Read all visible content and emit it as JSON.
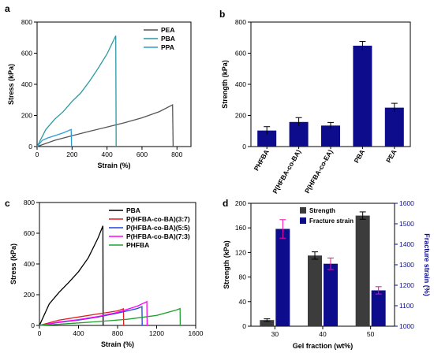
{
  "chart_data": [
    {
      "panel": "a",
      "type": "line",
      "xlabel": "Strain (%)",
      "ylabel": "Stress (kPa)",
      "xlim": [
        0,
        880
      ],
      "ylim": [
        0,
        800
      ],
      "xticks": [
        0,
        200,
        400,
        600,
        800
      ],
      "yticks": [
        0,
        200,
        400,
        600,
        800
      ],
      "legend_position": "top-right",
      "series": [
        {
          "name": "PEA",
          "color": "#555555",
          "points": [
            [
              0,
              0
            ],
            [
              100,
              40
            ],
            [
              200,
              70
            ],
            [
              300,
              98
            ],
            [
              400,
              125
            ],
            [
              500,
              153
            ],
            [
              600,
              185
            ],
            [
              700,
              225
            ],
            [
              775,
              268
            ],
            [
              778,
              0
            ]
          ]
        },
        {
          "name": "PBA",
          "color": "#2a9aa0",
          "points": [
            [
              0,
              0
            ],
            [
              50,
              110
            ],
            [
              100,
              175
            ],
            [
              150,
              225
            ],
            [
              200,
              290
            ],
            [
              250,
              345
            ],
            [
              300,
              420
            ],
            [
              350,
              505
            ],
            [
              400,
              595
            ],
            [
              450,
              712
            ],
            [
              452,
              0
            ]
          ]
        },
        {
          "name": "PPA",
          "color": "#2e9bd6",
          "points": [
            [
              0,
              0
            ],
            [
              30,
              40
            ],
            [
              60,
              55
            ],
            [
              100,
              70
            ],
            [
              150,
              88
            ],
            [
              195,
              110
            ],
            [
              197,
              0
            ]
          ]
        }
      ]
    },
    {
      "panel": "b",
      "type": "bar",
      "ylabel": "Strength (kPa)",
      "ylim": [
        0,
        800
      ],
      "yticks": [
        0,
        200,
        400,
        600,
        800
      ],
      "categories": [
        "PHFBA",
        "P(HFBA-co-BA)",
        "P(HFBA-co-EA)",
        "PBA",
        "PEA"
      ],
      "values": [
        103,
        158,
        135,
        648,
        250
      ],
      "errors": [
        25,
        28,
        20,
        28,
        28
      ],
      "color": "#0c0c8c"
    },
    {
      "panel": "c",
      "type": "line",
      "xlabel": "Strain (%)",
      "ylabel": "Stress (kPa)",
      "xlim": [
        0,
        1600
      ],
      "ylim": [
        0,
        800
      ],
      "xticks": [
        0,
        400,
        800,
        1200,
        1600
      ],
      "yticks": [
        0,
        200,
        400,
        600,
        800
      ],
      "legend_position": "top-right",
      "series": [
        {
          "name": "PBA",
          "color": "#000000",
          "points": [
            [
              0,
              0
            ],
            [
              100,
              140
            ],
            [
              200,
              215
            ],
            [
              300,
              280
            ],
            [
              400,
              350
            ],
            [
              500,
              440
            ],
            [
              600,
              570
            ],
            [
              650,
              648
            ],
            [
              652,
              0
            ]
          ]
        },
        {
          "name": "P(HFBA-co-BA)(3:7)",
          "color": "#e02020",
          "points": [
            [
              0,
              0
            ],
            [
              200,
              35
            ],
            [
              400,
              55
            ],
            [
              600,
              75
            ],
            [
              800,
              95
            ],
            [
              860,
              108
            ],
            [
              862,
              0
            ]
          ]
        },
        {
          "name": "P(HFBA-co-BA)(5:5)",
          "color": "#2040e0",
          "points": [
            [
              0,
              0
            ],
            [
              200,
              20
            ],
            [
              400,
              35
            ],
            [
              600,
              55
            ],
            [
              800,
              80
            ],
            [
              1000,
              110
            ],
            [
              1050,
              122
            ],
            [
              1052,
              0
            ]
          ]
        },
        {
          "name": "P(HFBA-co-BA)(7:3)",
          "color": "#ff00ff",
          "points": [
            [
              0,
              0
            ],
            [
              200,
              22
            ],
            [
              400,
              38
            ],
            [
              600,
              58
            ],
            [
              800,
              85
            ],
            [
              1000,
              125
            ],
            [
              1100,
              155
            ],
            [
              1102,
              0
            ]
          ]
        },
        {
          "name": "PHFBA",
          "color": "#22a030",
          "points": [
            [
              0,
              0
            ],
            [
              300,
              12
            ],
            [
              600,
              25
            ],
            [
              900,
              40
            ],
            [
              1200,
              65
            ],
            [
              1400,
              100
            ],
            [
              1440,
              110
            ],
            [
              1442,
              0
            ]
          ]
        }
      ]
    },
    {
      "panel": "d",
      "type": "bar",
      "xlabel": "Gel fraction (wt%)",
      "ylabel": "Strength (kPa)",
      "y2label": "Fracture strain (%)",
      "categories": [
        "30",
        "40",
        "50"
      ],
      "ylim": [
        0,
        200
      ],
      "yticks": [
        0,
        40,
        80,
        120,
        160,
        200
      ],
      "y2lim": [
        1000,
        1600
      ],
      "y2ticks": [
        1000,
        1100,
        1200,
        1300,
        1400,
        1500,
        1600
      ],
      "legend_position": "top-left",
      "series": [
        {
          "name": "Strength",
          "color": "#3c3c3c",
          "axis": "left",
          "values": [
            10,
            115,
            180
          ],
          "errors": [
            2,
            6,
            6
          ],
          "error_color": "#000000"
        },
        {
          "name": "Fracture strain",
          "color": "#0c0c8c",
          "axis": "right",
          "values": [
            1475,
            1305,
            1175
          ],
          "errors": [
            45,
            28,
            18
          ],
          "error_color": "#ff00aa"
        }
      ]
    }
  ]
}
